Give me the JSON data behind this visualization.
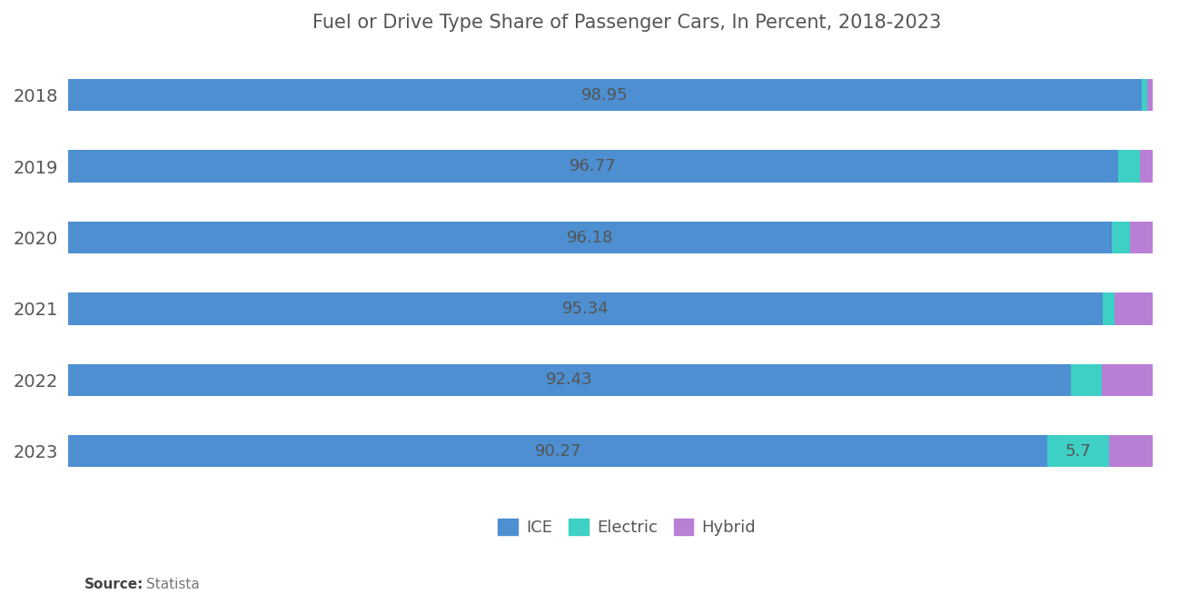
{
  "years": [
    "2018",
    "2019",
    "2020",
    "2021",
    "2022",
    "2023"
  ],
  "ice": [
    98.95,
    96.77,
    96.18,
    95.34,
    92.43,
    90.27
  ],
  "electric": [
    0.55,
    2.03,
    1.72,
    1.16,
    2.87,
    5.7
  ],
  "hybrid": [
    0.5,
    1.2,
    2.1,
    3.5,
    4.7,
    4.03
  ],
  "ice_color": "#4D8FD1",
  "electric_color": "#3ECFC5",
  "hybrid_color": "#B97FD4",
  "title": "Fuel or Drive Type Share of Passenger Cars, In Percent, 2018-2023",
  "title_fontsize": 15,
  "label_fontsize": 13,
  "legend_fontsize": 13,
  "bar_height": 0.45,
  "background_color": "#FFFFFF",
  "ice_labels": [
    "98.95",
    "96.77",
    "96.18",
    "95.34",
    "92.43",
    "90.27"
  ],
  "electric_label_2023": "5.7",
  "xlim": [
    0,
    103
  ]
}
